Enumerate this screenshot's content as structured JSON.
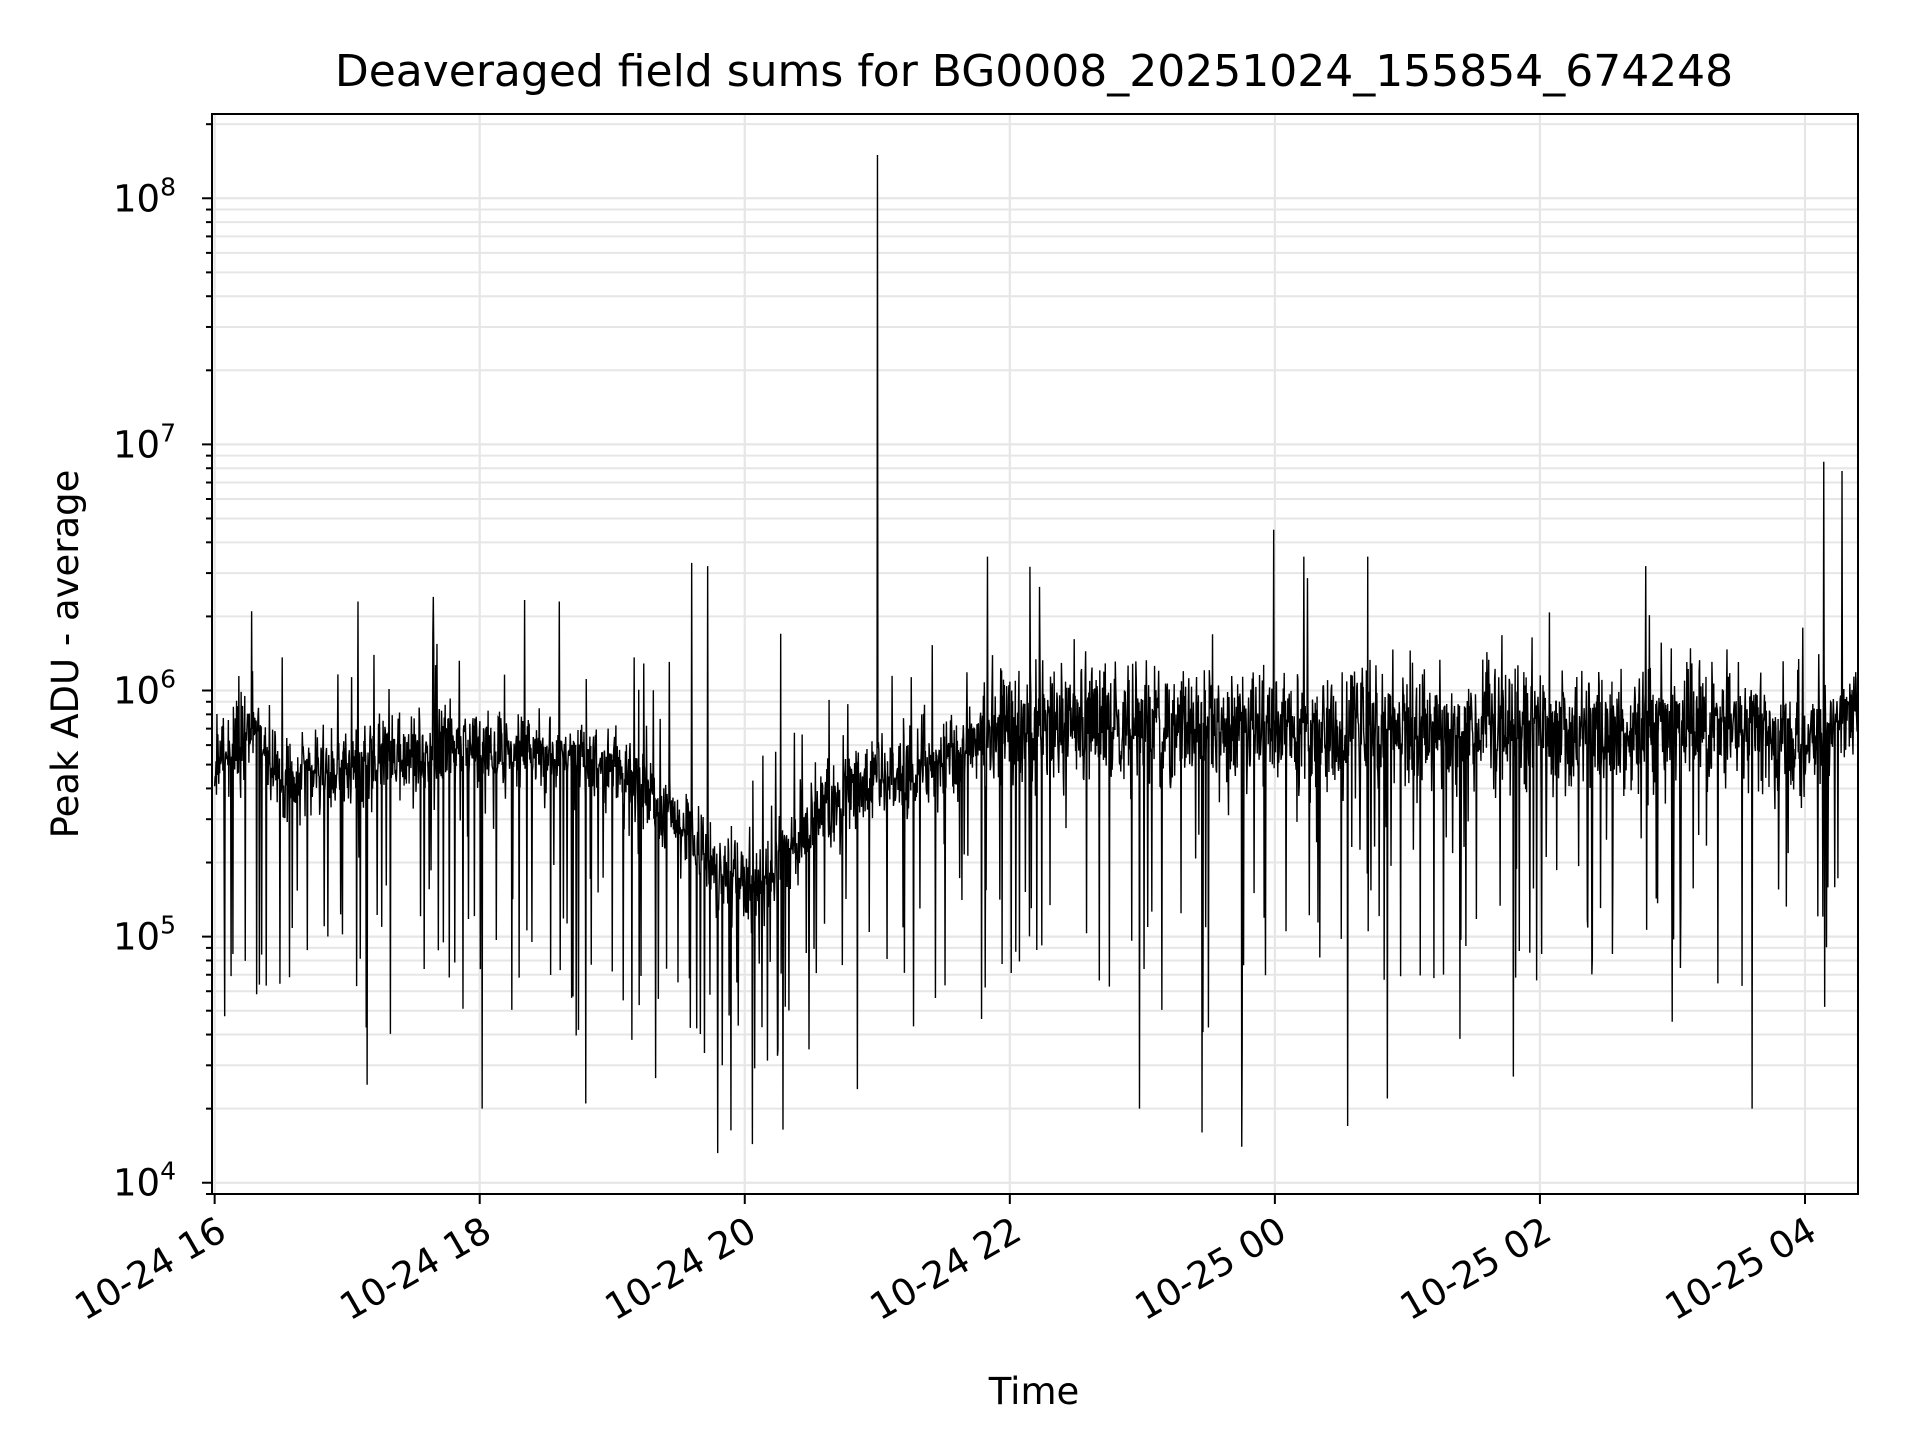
{
  "chart_data": {
    "type": "line",
    "title": "Deaveraged field sums for BG0008_20251024_155854_674248",
    "xlabel": "Time",
    "ylabel": "Peak ADU - average",
    "yscale": "log",
    "grid": true,
    "line_color": "#000000",
    "grid_color": "#e6e6e6",
    "x_unit": "hours since 10-24 16:00",
    "xlim": [
      -0.02,
      12.4
    ],
    "ylim": [
      9000,
      220000000
    ],
    "x_ticks": [
      {
        "x": 0,
        "label": "10-24 16"
      },
      {
        "x": 2,
        "label": "10-24 18"
      },
      {
        "x": 4,
        "label": "10-24 20"
      },
      {
        "x": 6,
        "label": "10-24 22"
      },
      {
        "x": 8,
        "label": "10-25 00"
      },
      {
        "x": 10,
        "label": "10-25 02"
      },
      {
        "x": 12,
        "label": "10-25 04"
      }
    ],
    "y_ticks": [
      {
        "y": 10000,
        "base": "10",
        "exp": "4"
      },
      {
        "y": 100000,
        "base": "10",
        "exp": "5"
      },
      {
        "y": 1000000,
        "base": "10",
        "exp": "6"
      },
      {
        "y": 10000000,
        "base": "10",
        "exp": "7"
      },
      {
        "y": 100000000,
        "base": "10",
        "exp": "8"
      }
    ],
    "baseline": [
      {
        "x": 0.0,
        "y": 500000
      },
      {
        "x": 0.3,
        "y": 700000
      },
      {
        "x": 0.5,
        "y": 420000
      },
      {
        "x": 1.0,
        "y": 500000
      },
      {
        "x": 2.0,
        "y": 600000
      },
      {
        "x": 3.0,
        "y": 500000
      },
      {
        "x": 3.5,
        "y": 280000
      },
      {
        "x": 3.8,
        "y": 170000
      },
      {
        "x": 4.1,
        "y": 160000
      },
      {
        "x": 4.6,
        "y": 320000
      },
      {
        "x": 5.0,
        "y": 440000
      },
      {
        "x": 5.5,
        "y": 500000
      },
      {
        "x": 5.9,
        "y": 750000
      },
      {
        "x": 7.0,
        "y": 700000
      },
      {
        "x": 8.0,
        "y": 700000
      },
      {
        "x": 10.0,
        "y": 700000
      },
      {
        "x": 11.5,
        "y": 700000
      },
      {
        "x": 12.0,
        "y": 600000
      },
      {
        "x": 12.4,
        "y": 850000
      }
    ],
    "notable_peaks": [
      {
        "x": 5.0,
        "y": 150000000
      },
      {
        "x": 12.14,
        "y": 8500000
      },
      {
        "x": 12.28,
        "y": 7800000
      },
      {
        "x": 7.99,
        "y": 4500000
      },
      {
        "x": 3.6,
        "y": 3300000
      },
      {
        "x": 3.72,
        "y": 3200000
      },
      {
        "x": 5.83,
        "y": 3500000
      },
      {
        "x": 8.22,
        "y": 3500000
      },
      {
        "x": 8.7,
        "y": 3500000
      },
      {
        "x": 10.8,
        "y": 3200000
      },
      {
        "x": 0.28,
        "y": 2100000
      },
      {
        "x": 1.08,
        "y": 2300000
      },
      {
        "x": 1.65,
        "y": 2400000
      },
      {
        "x": 2.6,
        "y": 2300000
      },
      {
        "x": 4.27,
        "y": 1700000
      }
    ],
    "notable_dips": [
      {
        "x": 7.45,
        "y": 16000
      },
      {
        "x": 7.75,
        "y": 14000
      },
      {
        "x": 8.55,
        "y": 17000
      },
      {
        "x": 2.02,
        "y": 20000
      },
      {
        "x": 2.8,
        "y": 21000
      },
      {
        "x": 6.98,
        "y": 20000
      },
      {
        "x": 11.6,
        "y": 20000
      },
      {
        "x": 4.85,
        "y": 24000
      },
      {
        "x": 1.15,
        "y": 25000
      },
      {
        "x": 8.85,
        "y": 22000
      },
      {
        "x": 9.8,
        "y": 27000
      },
      {
        "x": 3.83,
        "y": 30000
      }
    ]
  }
}
